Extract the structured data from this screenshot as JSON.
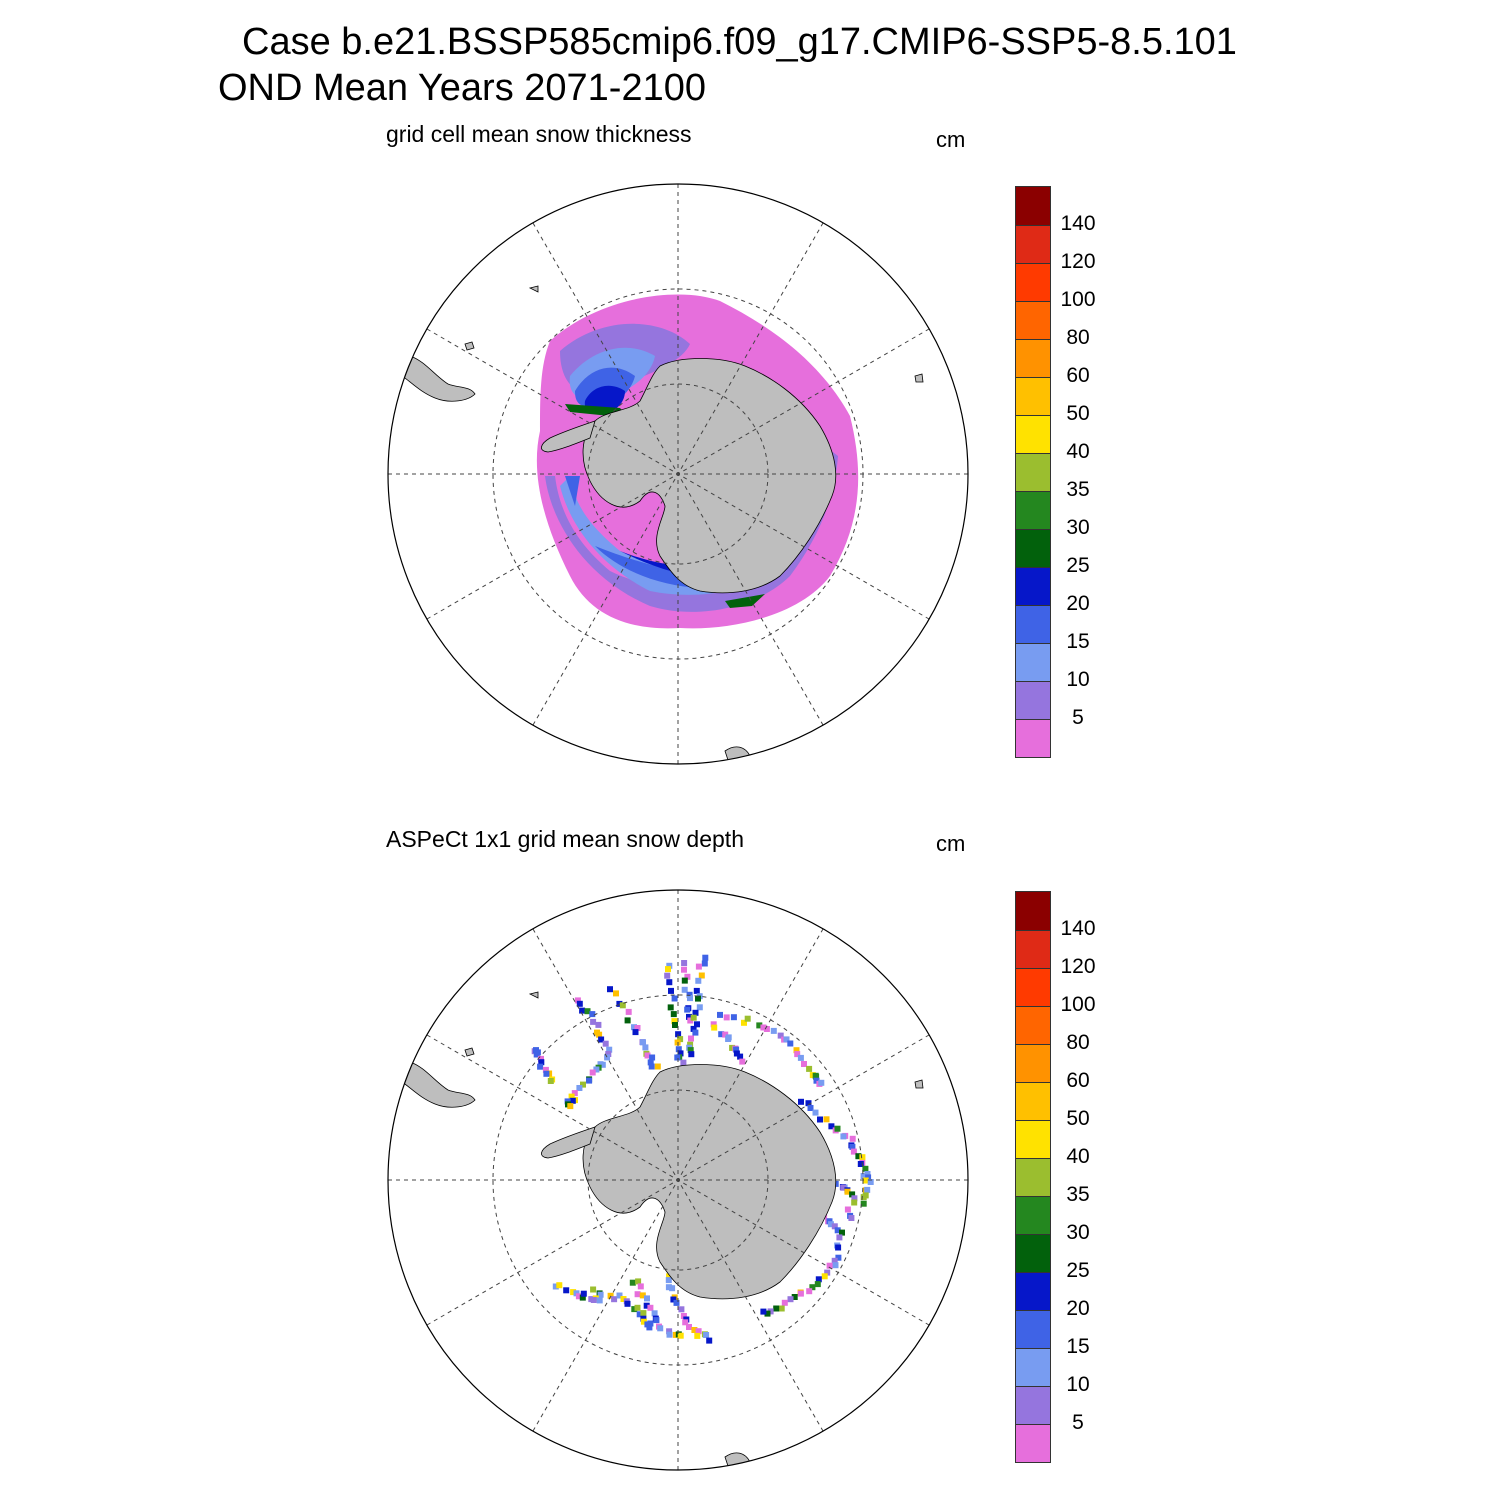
{
  "header": {
    "title_line1": "Case b.e21.BSSP585cmip6.f09_g17.CMIP6-SSP5-8.5.101",
    "title_line2": "OND Mean   Years 2071-2100"
  },
  "panels": [
    {
      "id": "model",
      "subtitle": "grid cell mean snow thickness",
      "units": "cm"
    },
    {
      "id": "aspect",
      "subtitle": "ASPeCt 1x1 grid mean snow depth",
      "units": "cm"
    }
  ],
  "colorbar": {
    "colors": [
      "#e66fdc",
      "#9575de",
      "#789cf1",
      "#3f63e6",
      "#0617c9",
      "#02610c",
      "#24871f",
      "#9bbe2f",
      "#ffe200",
      "#ffc000",
      "#ff9200",
      "#ff6500",
      "#ff3a00",
      "#df2a16",
      "#8b0000"
    ],
    "tick_labels": [
      "5",
      "10",
      "15",
      "20",
      "25",
      "30",
      "35",
      "40",
      "50",
      "60",
      "80",
      "100",
      "120",
      "140"
    ]
  },
  "map_style": {
    "land_color": "#bebebe",
    "grid_color": "#444444",
    "boundary_color": "#000000"
  }
}
